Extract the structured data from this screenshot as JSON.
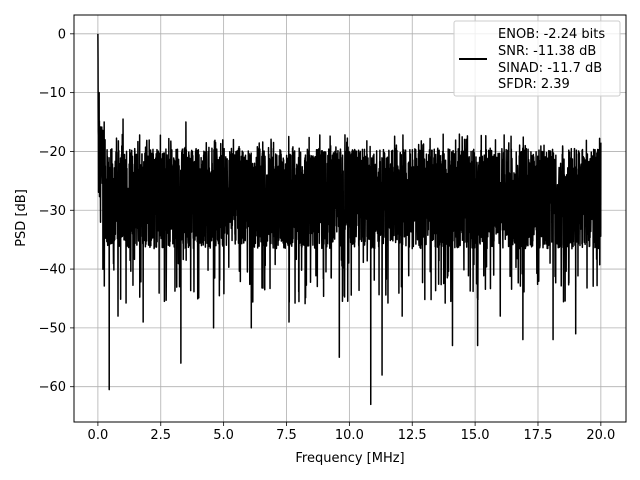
{
  "chart_data": {
    "type": "line",
    "xlabel": "Frequency [MHz]",
    "ylabel": "PSD [dB]",
    "xlim": [
      -0.95,
      21.0
    ],
    "ylim": [
      -66.0,
      3.2
    ],
    "grid": true,
    "xticks": [
      0.0,
      2.5,
      5.0,
      7.5,
      10.0,
      12.5,
      15.0,
      17.5,
      20.0
    ],
    "xtick_labels": [
      "0.0",
      "2.5",
      "5.0",
      "7.5",
      "10.0",
      "12.5",
      "15.0",
      "17.5",
      "20.0"
    ],
    "yticks": [
      0,
      -10,
      -20,
      -30,
      -40,
      -50,
      -60
    ],
    "ytick_labels": [
      "0",
      "−10",
      "−20",
      "−30",
      "−40",
      "−50",
      "−60"
    ],
    "legend_position": "top-right",
    "legend_lines": [
      "ENOB: -2.24 bits",
      "SNR: -11.38 dB",
      "SINAD: -11.7 dB",
      "SFDR: 2.39"
    ],
    "line_color": "#000000",
    "grid_color": "#b0b0b0",
    "series": [
      {
        "x_start": 0.0,
        "x_end": 20.0,
        "points": 4001,
        "baseline_db": -28.0,
        "envelope_top_db": -20.0,
        "envelope_bottom_db": -38.0,
        "peak": {
          "x": 0.0,
          "y": 0.0
        },
        "minimum": {
          "x": 10.85,
          "y": -63.0
        },
        "notable_dips": [
          {
            "x": 0.45,
            "y": -60.5
          },
          {
            "x": 3.3,
            "y": -56.0
          },
          {
            "x": 9.6,
            "y": -55.0
          },
          {
            "x": 10.85,
            "y": -63.0
          },
          {
            "x": 11.3,
            "y": -58.0
          },
          {
            "x": 14.1,
            "y": -53.0
          },
          {
            "x": 15.1,
            "y": -53.0
          },
          {
            "x": 16.9,
            "y": -52.0
          },
          {
            "x": 18.1,
            "y": -52.0
          },
          {
            "x": 1.8,
            "y": -49.0
          },
          {
            "x": 4.6,
            "y": -50.0
          },
          {
            "x": 6.1,
            "y": -50.0
          },
          {
            "x": 7.6,
            "y": -49.0
          },
          {
            "x": 12.1,
            "y": -48.0
          },
          {
            "x": 16.0,
            "y": -48.0
          },
          {
            "x": 19.0,
            "y": -51.0
          },
          {
            "x": 0.8,
            "y": -48.0
          }
        ],
        "notable_peaks": [
          {
            "x": 0.05,
            "y": -10.0
          },
          {
            "x": 0.25,
            "y": -15.0
          },
          {
            "x": 1.0,
            "y": -14.5
          },
          {
            "x": 3.5,
            "y": -15.0
          },
          {
            "x": 20.0,
            "y": -18.5
          }
        ]
      }
    ]
  }
}
